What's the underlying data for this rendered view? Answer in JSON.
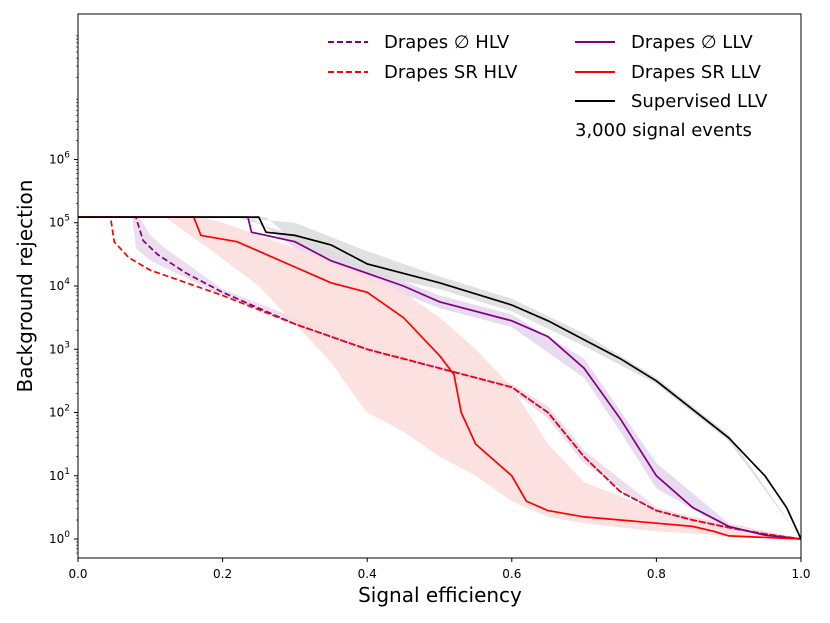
{
  "chart_data": {
    "type": "line",
    "title": "",
    "xlabel": "Signal efficiency",
    "ylabel": "Background rejection",
    "xlim": [
      0.0,
      1.0
    ],
    "ylim_log10": [
      -0.3,
      8.3
    ],
    "yscale": "log",
    "x_ticks": [
      "0.0",
      "0.2",
      "0.4",
      "0.6",
      "0.8",
      "1.0"
    ],
    "x_tick_values": [
      0.0,
      0.2,
      0.4,
      0.6,
      0.8,
      1.0
    ],
    "y_ticks": [
      {
        "base": "10",
        "exp": "0",
        "log": 0
      },
      {
        "base": "10",
        "exp": "1",
        "log": 1
      },
      {
        "base": "10",
        "exp": "2",
        "log": 2
      },
      {
        "base": "10",
        "exp": "3",
        "log": 3
      },
      {
        "base": "10",
        "exp": "4",
        "log": 4
      },
      {
        "base": "10",
        "exp": "5",
        "log": 5
      },
      {
        "base": "10",
        "exp": "6",
        "log": 6
      }
    ],
    "annotation": "3,000 signal events",
    "legend_position": "top-right",
    "series": [
      {
        "name": "Drapes ∅ HLV",
        "color": "#800080",
        "dash": true,
        "points": [
          [
            0.0,
            5.09
          ],
          [
            0.08,
            5.09
          ],
          [
            0.09,
            4.72
          ],
          [
            0.11,
            4.5
          ],
          [
            0.15,
            4.2
          ],
          [
            0.2,
            3.9
          ],
          [
            0.3,
            3.4
          ],
          [
            0.4,
            3.0
          ],
          [
            0.5,
            2.7
          ],
          [
            0.6,
            2.4
          ],
          [
            0.65,
            2.0
          ],
          [
            0.7,
            1.3
          ],
          [
            0.75,
            0.75
          ],
          [
            0.8,
            0.45
          ],
          [
            0.85,
            0.3
          ],
          [
            0.9,
            0.18
          ],
          [
            0.95,
            0.08
          ],
          [
            1.0,
            0.0
          ]
        ]
      },
      {
        "name": "Drapes SR HLV",
        "color": "#ff0000",
        "dash": true,
        "points": [
          [
            0.0,
            5.09
          ],
          [
            0.045,
            5.09
          ],
          [
            0.05,
            4.7
          ],
          [
            0.07,
            4.45
          ],
          [
            0.1,
            4.25
          ],
          [
            0.15,
            4.05
          ],
          [
            0.2,
            3.85
          ],
          [
            0.3,
            3.4
          ],
          [
            0.4,
            3.0
          ],
          [
            0.5,
            2.7
          ],
          [
            0.6,
            2.4
          ],
          [
            0.65,
            2.0
          ],
          [
            0.7,
            1.3
          ],
          [
            0.75,
            0.75
          ],
          [
            0.8,
            0.45
          ],
          [
            0.85,
            0.3
          ],
          [
            0.9,
            0.18
          ],
          [
            0.95,
            0.08
          ],
          [
            1.0,
            0.0
          ]
        ]
      },
      {
        "name": "Drapes ∅ LLV",
        "color": "#800080",
        "dash": false,
        "points": [
          [
            0.0,
            5.09
          ],
          [
            0.235,
            5.09
          ],
          [
            0.24,
            4.85
          ],
          [
            0.3,
            4.7
          ],
          [
            0.35,
            4.4
          ],
          [
            0.4,
            4.2
          ],
          [
            0.45,
            4.0
          ],
          [
            0.5,
            3.75
          ],
          [
            0.6,
            3.45
          ],
          [
            0.65,
            3.2
          ],
          [
            0.7,
            2.7
          ],
          [
            0.75,
            1.9
          ],
          [
            0.8,
            1.0
          ],
          [
            0.85,
            0.5
          ],
          [
            0.9,
            0.2
          ],
          [
            0.95,
            0.06
          ],
          [
            1.0,
            0.0
          ]
        ]
      },
      {
        "name": "Drapes SR LLV",
        "color": "#ff0000",
        "dash": false,
        "points": [
          [
            0.0,
            5.09
          ],
          [
            0.16,
            5.09
          ],
          [
            0.17,
            4.8
          ],
          [
            0.22,
            4.7
          ],
          [
            0.3,
            4.3
          ],
          [
            0.35,
            4.05
          ],
          [
            0.4,
            3.9
          ],
          [
            0.45,
            3.5
          ],
          [
            0.5,
            2.9
          ],
          [
            0.52,
            2.6
          ],
          [
            0.53,
            2.0
          ],
          [
            0.55,
            1.5
          ],
          [
            0.6,
            1.0
          ],
          [
            0.62,
            0.6
          ],
          [
            0.65,
            0.45
          ],
          [
            0.7,
            0.35
          ],
          [
            0.75,
            0.3
          ],
          [
            0.8,
            0.25
          ],
          [
            0.85,
            0.2
          ],
          [
            0.88,
            0.12
          ],
          [
            0.9,
            0.05
          ],
          [
            1.0,
            0.0
          ]
        ]
      },
      {
        "name": "Supervised LLV",
        "color": "#000000",
        "dash": false,
        "points": [
          [
            0.0,
            5.09
          ],
          [
            0.25,
            5.09
          ],
          [
            0.26,
            4.85
          ],
          [
            0.3,
            4.8
          ],
          [
            0.35,
            4.65
          ],
          [
            0.4,
            4.35
          ],
          [
            0.5,
            4.05
          ],
          [
            0.6,
            3.7
          ],
          [
            0.65,
            3.45
          ],
          [
            0.7,
            3.15
          ],
          [
            0.75,
            2.85
          ],
          [
            0.8,
            2.5
          ],
          [
            0.85,
            2.05
          ],
          [
            0.9,
            1.6
          ],
          [
            0.95,
            1.0
          ],
          [
            0.98,
            0.5
          ],
          [
            1.0,
            0.0
          ]
        ]
      }
    ],
    "bands": [
      {
        "name": "Drapes ∅ HLV band",
        "color": "#ead8ea",
        "upper": [
          [
            0.0,
            5.09
          ],
          [
            0.085,
            5.09
          ],
          [
            0.1,
            4.8
          ],
          [
            0.12,
            4.6
          ],
          [
            0.2,
            3.95
          ],
          [
            0.4,
            3.05
          ],
          [
            0.6,
            2.45
          ],
          [
            0.65,
            2.1
          ],
          [
            0.7,
            1.4
          ],
          [
            0.8,
            0.5
          ],
          [
            0.9,
            0.2
          ],
          [
            1.0,
            0.0
          ]
        ],
        "lower": [
          [
            0.0,
            5.09
          ],
          [
            0.075,
            5.09
          ],
          [
            0.08,
            4.6
          ],
          [
            0.1,
            4.4
          ],
          [
            0.2,
            3.85
          ],
          [
            0.4,
            2.95
          ],
          [
            0.6,
            2.35
          ],
          [
            0.65,
            1.9
          ],
          [
            0.7,
            1.2
          ],
          [
            0.8,
            0.4
          ],
          [
            0.9,
            0.16
          ],
          [
            1.0,
            0.0
          ]
        ]
      },
      {
        "name": "Drapes ∅ LLV band",
        "color": "#e4d4ec",
        "upper": [
          [
            0.0,
            5.09
          ],
          [
            0.22,
            5.09
          ],
          [
            0.3,
            4.8
          ],
          [
            0.4,
            4.3
          ],
          [
            0.5,
            3.85
          ],
          [
            0.6,
            3.55
          ],
          [
            0.7,
            2.85
          ],
          [
            0.8,
            1.2
          ],
          [
            0.9,
            0.25
          ],
          [
            1.0,
            0.0
          ]
        ],
        "lower": [
          [
            0.0,
            5.09
          ],
          [
            0.24,
            5.09
          ],
          [
            0.3,
            4.6
          ],
          [
            0.4,
            4.1
          ],
          [
            0.5,
            3.65
          ],
          [
            0.6,
            3.35
          ],
          [
            0.7,
            2.55
          ],
          [
            0.75,
            1.7
          ],
          [
            0.8,
            0.8
          ],
          [
            0.9,
            0.15
          ],
          [
            1.0,
            0.0
          ]
        ]
      },
      {
        "name": "Supervised LLV band",
        "color": "#dcdcdc",
        "upper": [
          [
            0.0,
            5.09
          ],
          [
            0.21,
            5.09
          ],
          [
            0.3,
            5.0
          ],
          [
            0.4,
            4.55
          ],
          [
            0.5,
            4.15
          ],
          [
            0.6,
            3.8
          ],
          [
            0.7,
            3.25
          ],
          [
            0.8,
            2.55
          ],
          [
            0.9,
            1.65
          ],
          [
            1.0,
            0.0
          ]
        ],
        "lower": [
          [
            0.0,
            5.09
          ],
          [
            0.26,
            5.09
          ],
          [
            0.3,
            4.7
          ],
          [
            0.4,
            4.2
          ],
          [
            0.5,
            3.95
          ],
          [
            0.6,
            3.6
          ],
          [
            0.7,
            3.05
          ],
          [
            0.8,
            2.45
          ],
          [
            0.9,
            1.55
          ],
          [
            1.0,
            0.0
          ]
        ]
      },
      {
        "name": "Drapes SR LLV band",
        "color": "#fcdcdc",
        "upper": [
          [
            0.0,
            5.09
          ],
          [
            0.1,
            5.09
          ],
          [
            0.17,
            5.09
          ],
          [
            0.2,
            5.0
          ],
          [
            0.3,
            4.6
          ],
          [
            0.35,
            4.4
          ],
          [
            0.4,
            4.2
          ],
          [
            0.45,
            3.9
          ],
          [
            0.5,
            3.5
          ],
          [
            0.55,
            3.0
          ],
          [
            0.6,
            2.4
          ],
          [
            0.65,
            1.5
          ],
          [
            0.7,
            0.9
          ],
          [
            0.8,
            0.45
          ],
          [
            0.9,
            0.25
          ],
          [
            1.0,
            0.0
          ]
        ],
        "lower": [
          [
            0.0,
            5.09
          ],
          [
            0.12,
            5.09
          ],
          [
            0.18,
            4.6
          ],
          [
            0.25,
            4.0
          ],
          [
            0.3,
            3.4
          ],
          [
            0.35,
            2.8
          ],
          [
            0.38,
            2.3
          ],
          [
            0.4,
            2.0
          ],
          [
            0.45,
            1.7
          ],
          [
            0.5,
            1.3
          ],
          [
            0.55,
            1.0
          ],
          [
            0.6,
            0.6
          ],
          [
            0.65,
            0.35
          ],
          [
            0.7,
            0.25
          ],
          [
            0.8,
            0.12
          ],
          [
            0.9,
            0.05
          ],
          [
            1.0,
            0.0
          ]
        ]
      }
    ]
  }
}
